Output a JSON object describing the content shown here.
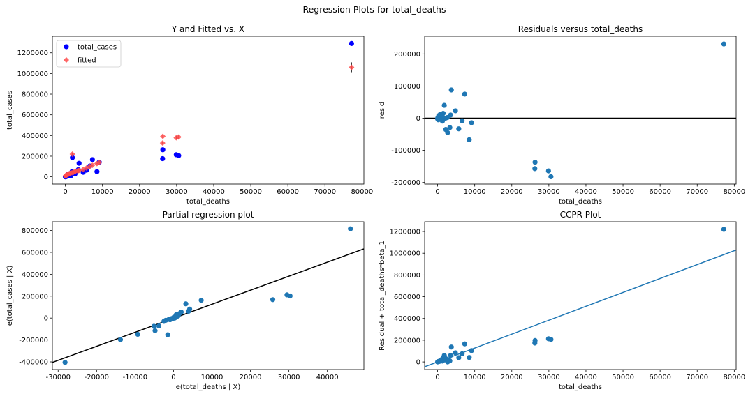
{
  "suptitle": "Regression Plots for total_deaths",
  "chart_data": [
    {
      "type": "scatter",
      "title": "Y and Fitted vs. X",
      "xlabel": "total_deaths",
      "ylabel": "total_cases",
      "xlim": [
        -3500,
        80500
      ],
      "ylim": [
        -70000,
        1360000
      ],
      "xticks": [
        0,
        10000,
        20000,
        30000,
        40000,
        50000,
        60000,
        70000,
        80000
      ],
      "yticks": [
        0,
        200000,
        400000,
        600000,
        800000,
        1000000,
        1200000
      ],
      "legend": "top-left",
      "series": [
        {
          "name": "total_cases",
          "marker": "circle",
          "color": "#0000ff",
          "x": [
            77180,
            30560,
            29900,
            26280,
            26220,
            9140,
            8520,
            7300,
            6600,
            5700,
            4800,
            3700,
            3300,
            2700,
            2200,
            1900,
            1800,
            1500,
            1300,
            1100,
            900,
            700,
            500,
            400,
            300,
            200,
            100,
            50,
            0,
            1200,
            2600,
            3500
          ],
          "y": [
            1290000,
            205000,
            214000,
            262000,
            176000,
            141000,
            50000,
            166000,
            105000,
            64000,
            44000,
            131000,
            60000,
            39000,
            35000,
            186000,
            51000,
            10000,
            20000,
            30000,
            15000,
            25000,
            12000,
            5000,
            8000,
            2000,
            1000,
            500,
            0,
            8000,
            28000,
            70000
          ]
        },
        {
          "name": "fitted",
          "marker": "diamond",
          "color": "#ff4c4c",
          "x": [
            77180,
            30560,
            29900,
            26280,
            26220,
            9140,
            8520,
            7300,
            6600,
            5700,
            4800,
            3700,
            3300,
            2700,
            2200,
            1900,
            1800,
            1500,
            1300,
            1100,
            900,
            700,
            500,
            400,
            300,
            200,
            100,
            50,
            0,
            1200,
            2600,
            3500
          ],
          "y": [
            1060000,
            385000,
            378000,
            392000,
            327000,
            140000,
            128000,
            112000,
            100000,
            85000,
            72000,
            62000,
            58000,
            52000,
            44000,
            220000,
            40000,
            38000,
            34000,
            30000,
            27000,
            24000,
            20000,
            18000,
            16000,
            14000,
            12000,
            10000,
            8000,
            32000,
            50000,
            60000
          ]
        }
      ]
    },
    {
      "type": "scatter",
      "title": "Residuals versus total_deaths",
      "xlabel": "total_deaths",
      "ylabel": "resid",
      "xlim": [
        -3500,
        80500
      ],
      "ylim": [
        -205000,
        255000
      ],
      "xticks": [
        0,
        10000,
        20000,
        30000,
        40000,
        50000,
        60000,
        70000,
        80000
      ],
      "yticks": [
        -200000,
        -100000,
        0,
        100000,
        200000
      ],
      "hline": 0,
      "series": [
        {
          "name": "",
          "color": "#1f77b4",
          "x": [
            77180,
            30560,
            29900,
            26280,
            26220,
            9140,
            8520,
            7300,
            6600,
            5700,
            4800,
            3700,
            3300,
            2700,
            2200,
            1900,
            1800,
            1500,
            1300,
            1100,
            900,
            700,
            500,
            400,
            300,
            200,
            100,
            50,
            0,
            1200,
            2600,
            3500
          ],
          "y": [
            231000,
            -182000,
            -164000,
            -137000,
            -157000,
            -14000,
            -67000,
            75000,
            -8000,
            -33000,
            23000,
            88000,
            -29000,
            -45000,
            -35000,
            -2000,
            40000,
            15000,
            -9000,
            0,
            6000,
            12000,
            -3000,
            4000,
            8000,
            -5000,
            2000,
            1000,
            -2000,
            10000,
            2000,
            10000
          ]
        }
      ]
    },
    {
      "type": "scatter",
      "title": "Partial regression plot",
      "xlabel": "e(total_deaths | X)",
      "ylabel": "e(total_cases | X)",
      "xlim": [
        -31500,
        49500
      ],
      "ylim": [
        -470000,
        880000
      ],
      "xticks": [
        -30000,
        -20000,
        -10000,
        0,
        10000,
        20000,
        30000,
        40000
      ],
      "yticks": [
        -400000,
        -200000,
        0,
        200000,
        400000,
        600000,
        800000
      ],
      "fit_line": {
        "x": [
          -31500,
          49500
        ],
        "y": [
          -405000,
          632000
        ],
        "color": "#000000"
      },
      "series": [
        {
          "name": "",
          "color": "#1f77b4",
          "x": [
            46000,
            29500,
            30300,
            25800,
            7200,
            4200,
            3900,
            3200,
            -28200,
            -13800,
            -9300,
            -1500,
            -4800,
            -5100,
            -3800,
            -2500,
            -1200,
            -500,
            0,
            500,
            1000,
            1500,
            2000,
            1200,
            -2000,
            800,
            300,
            700,
            -300,
            -900
          ],
          "y": [
            815000,
            212000,
            202000,
            168000,
            162000,
            82000,
            62000,
            130000,
            -405000,
            -197000,
            -148000,
            -152000,
            -115000,
            -75000,
            -72000,
            -30000,
            -12000,
            -5000,
            5000,
            15000,
            25000,
            40000,
            55000,
            20000,
            -20000,
            10000,
            0,
            30000,
            -8000,
            -15000
          ]
        }
      ]
    },
    {
      "type": "scatter",
      "title": "CCPR Plot",
      "xlabel": "total_deaths",
      "ylabel": "Residual + total_deaths*beta_1",
      "xlim": [
        -3500,
        80500
      ],
      "ylim": [
        -70000,
        1290000
      ],
      "xticks": [
        0,
        10000,
        20000,
        30000,
        40000,
        50000,
        60000,
        70000,
        80000
      ],
      "yticks": [
        0,
        200000,
        400000,
        600000,
        800000,
        1000000,
        1200000
      ],
      "fit_line": {
        "x": [
          -3500,
          80500
        ],
        "y": [
          -45000,
          1030000
        ],
        "color": "#1f77b4"
      },
      "series": [
        {
          "name": "",
          "color": "#1f77b4",
          "x": [
            77180,
            30560,
            29900,
            26280,
            26220,
            9140,
            8520,
            7300,
            6600,
            5700,
            4800,
            3700,
            3300,
            2700,
            2200,
            1900,
            1800,
            1500,
            1300,
            1100,
            900,
            700,
            500,
            400,
            300,
            200,
            100,
            50,
            0,
            1200,
            2600,
            3500
          ],
          "y": [
            1220000,
            207000,
            213000,
            197000,
            174000,
            104000,
            41000,
            166000,
            75000,
            39000,
            84000,
            137000,
            10000,
            0,
            30000,
            20000,
            60000,
            40000,
            8000,
            15000,
            12000,
            10000,
            5000,
            6000,
            4000,
            3000,
            2000,
            1000,
            0,
            25000,
            22000,
            60000
          ]
        }
      ]
    }
  ]
}
